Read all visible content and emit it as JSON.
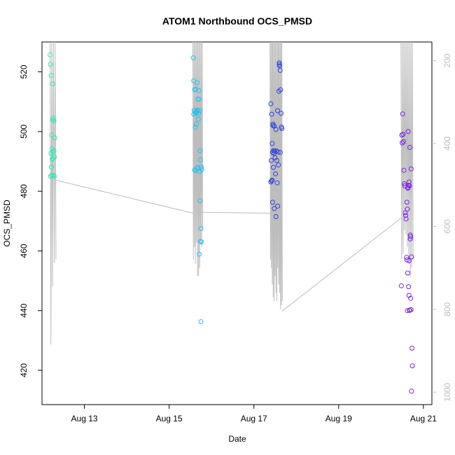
{
  "chart_data": {
    "type": "scatter",
    "title": "ATOM1 Northbound OCS_PMSD",
    "xlabel": "Date",
    "ylabel": "OCS_PMSD",
    "x_ticks": [
      "Aug 13",
      "Aug 15",
      "Aug 17",
      "Aug 19",
      "Aug 21"
    ],
    "x_tick_values": [
      13,
      15,
      17,
      19,
      21
    ],
    "xlim": [
      12.0,
      21.2
    ],
    "ylim": [
      408.5,
      530
    ],
    "y_ticks": [
      420,
      440,
      460,
      480,
      500,
      520
    ],
    "y2_ticks": [
      "200",
      "400",
      "600",
      "800",
      "1000"
    ],
    "y2_tick_values": [
      200,
      400,
      600,
      800,
      1000
    ],
    "y2lim": [
      1030,
      155
    ],
    "grid": false,
    "colors": {
      "Aug 12": "#2fe8b4",
      "Aug 15": "#22c4ef",
      "Aug 17": "#2a40e0",
      "Aug 20": "#7a1fe8",
      "depth_line": "#bdbdbd",
      "axis": "#000000",
      "right_axis": "#bdbdbd"
    },
    "series": [
      {
        "x": [
          12.19,
          12.2,
          12.22,
          12.25,
          12.27,
          12.28,
          12.3,
          12.23,
          12.24,
          12.25,
          12.21,
          12.26,
          12.29,
          12.22,
          12.27,
          12.2,
          12.23,
          12.29,
          12.25,
          12.28,
          12.24
        ],
        "y": [
          525.7,
          522.5,
          518.8,
          516.0,
          504.5,
          503.6,
          497.9,
          498.8,
          494.2,
          493.3,
          492.7,
          491.0,
          491.5,
          488.1,
          485.3,
          485.0,
          485.3,
          485.0,
          504.0,
          493.5,
          490.7
        ]
      },
      {
        "x": [
          15.57,
          15.58,
          15.6,
          15.63,
          15.66,
          15.68,
          15.71,
          15.72,
          15.59,
          15.61,
          15.62,
          15.64,
          15.65,
          15.67,
          15.69,
          15.7,
          15.73,
          15.74,
          15.76,
          15.77,
          15.6,
          15.63,
          15.66,
          15.68,
          15.72,
          15.73,
          15.75,
          15.62,
          15.64,
          15.7,
          15.58,
          15.67,
          15.74,
          15.76,
          15.71,
          15.75
        ],
        "y": [
          524.7,
          517.0,
          514.0,
          514.2,
          516.4,
          510.9,
          510.8,
          507.0,
          507.1,
          506.3,
          506.6,
          506.2,
          506.5,
          507.2,
          504.1,
          506.0,
          493.5,
          490.5,
          488.1,
          487.3,
          487.1,
          487.0,
          487.6,
          488.0,
          486.6,
          476.8,
          467.5,
          501.4,
          502.5,
          513.7,
          505.8,
          506.9,
          463.2,
          463.0,
          458.9,
          436.3
        ]
      },
      {
        "x": [
          17.6,
          17.61,
          17.62,
          17.63,
          17.4,
          17.42,
          17.45,
          17.48,
          17.52,
          17.56,
          17.59,
          17.64,
          17.65,
          17.43,
          17.46,
          17.49,
          17.53,
          17.57,
          17.41,
          17.44,
          17.47,
          17.5,
          17.54,
          17.58,
          17.62,
          17.66,
          17.42,
          17.46,
          17.51,
          17.55,
          17.44,
          17.48,
          17.52,
          17.4,
          17.43,
          17.56,
          17.45,
          17.6
        ],
        "y": [
          522.5,
          522.0,
          520.5,
          514.0,
          509.3,
          505.8,
          502.5,
          501.8,
          500.7,
          507.0,
          513.5,
          506.1,
          501.5,
          496.0,
          493.6,
          493.5,
          493.5,
          493.1,
          490.3,
          493.0,
          492.7,
          491.2,
          490.3,
          488.8,
          493.0,
          501.0,
          483.5,
          488.0,
          485.8,
          482.8,
          476.3,
          474.2,
          471.5,
          483.1,
          483.7,
          475.0,
          502.0,
          523.0
        ]
      },
      {
        "x": [
          20.51,
          20.52,
          20.49,
          20.5,
          20.53,
          20.54,
          20.55,
          20.56,
          20.57,
          20.58,
          20.59,
          20.61,
          20.62,
          20.63,
          20.64,
          20.65,
          20.66,
          20.67,
          20.68,
          20.69,
          20.7,
          20.72,
          20.6,
          20.61,
          20.63,
          20.65,
          20.66,
          20.67,
          20.68,
          20.7,
          20.71,
          20.73,
          20.74,
          20.72,
          20.64,
          20.71,
          20.69,
          20.66,
          20.48,
          20.62
        ],
        "y": [
          505.9,
          499.1,
          498.8,
          496.2,
          496.6,
          487.0,
          482.5,
          481.8,
          472.8,
          471.9,
          470.7,
          476.3,
          474.0,
          481.0,
          481.3,
          482.0,
          483.1,
          481.8,
          494.7,
          465.3,
          464.8,
          458.0,
          457.8,
          457.0,
          452.6,
          448.0,
          445.1,
          440.1,
          440.1,
          444.1,
          440.3,
          427.4,
          421.5,
          413.0,
          500.0,
          487.5,
          464.0,
          456.7,
          448.3,
          440.0
        ]
      }
    ]
  }
}
